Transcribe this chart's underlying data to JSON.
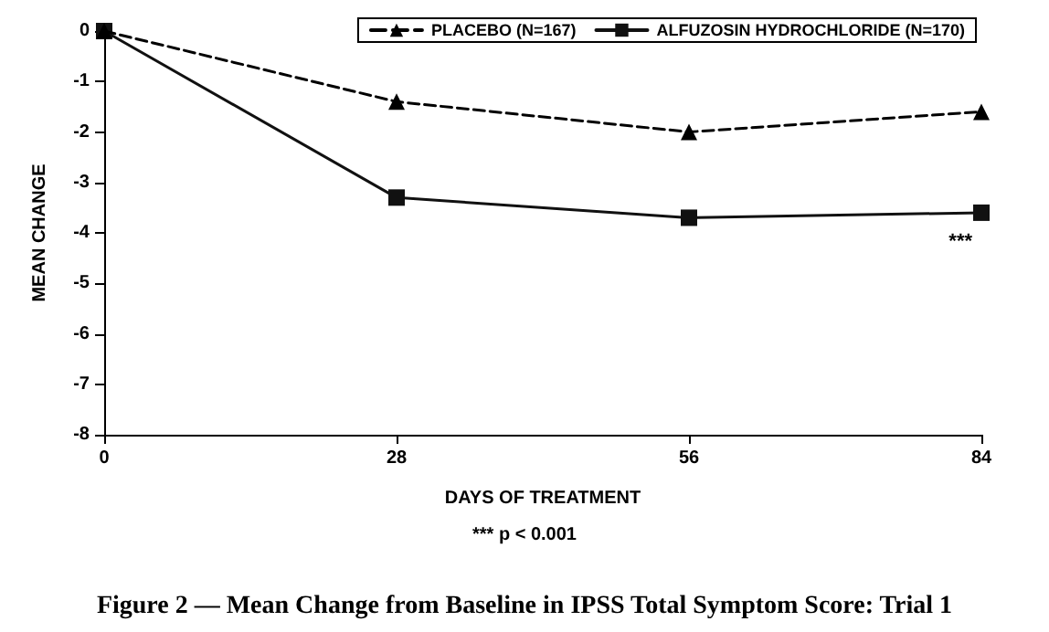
{
  "chart_data": {
    "type": "line",
    "title": "Figure 2 — Mean Change from Baseline in IPSS Total Symptom Score: Trial 1",
    "xlabel": "DAYS OF TREATMENT",
    "ylabel": "MEAN CHANGE",
    "x": [
      0,
      28,
      56,
      84
    ],
    "series": [
      {
        "name": "PLACEBO (N=167)",
        "color": "#000000",
        "values": [
          0,
          -1.4,
          -2.0,
          -1.6
        ],
        "marker": "triangle",
        "line_style": "dashed"
      },
      {
        "name": "ALFUZOSIN HYDROCHLORIDE (N=170)",
        "color": "#111111",
        "values": [
          0,
          -3.3,
          -3.7,
          -3.6
        ],
        "marker": "square",
        "line_style": "solid"
      }
    ],
    "xlim": [
      0,
      84
    ],
    "xticks": [
      0,
      28,
      56,
      84
    ],
    "ylim": [
      -8,
      0
    ],
    "yticks": [
      -8,
      -7,
      -6,
      -5,
      -4,
      -3,
      -2,
      -1,
      0
    ],
    "grid": false,
    "legend": "top right",
    "annotations": [
      "***",
      "*** p < 0.001"
    ]
  }
}
